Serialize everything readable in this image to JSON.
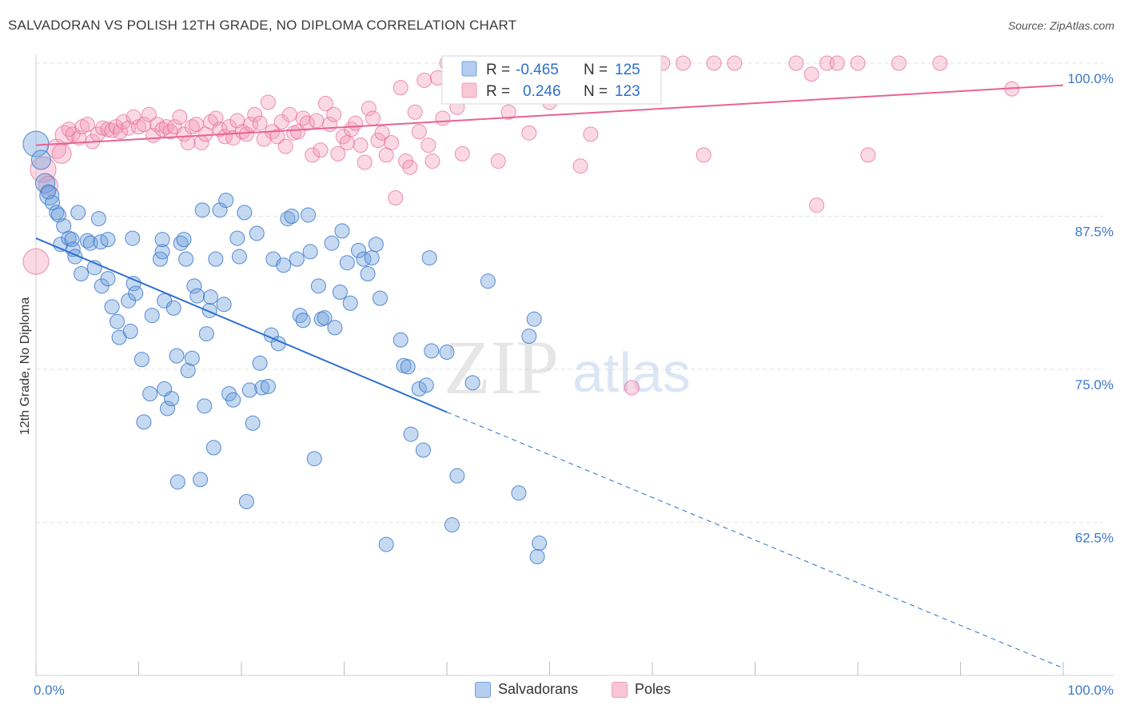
{
  "header": {
    "title": "SALVADORAN VS POLISH 12TH GRADE, NO DIPLOMA CORRELATION CHART",
    "source": "Source: ZipAtlas.com"
  },
  "watermark": {
    "zip": "ZIP",
    "atlas": "atlas"
  },
  "legend": {
    "items": [
      {
        "r_label": "R =",
        "r_value": "-0.465",
        "n_label": "N =",
        "n_value": "125"
      },
      {
        "r_label": "R =",
        "r_value": "0.246",
        "n_label": "N =",
        "n_value": "123"
      }
    ]
  },
  "bottom_legend": {
    "items": [
      {
        "label": "Salvadorans"
      },
      {
        "label": "Poles"
      }
    ]
  },
  "chart_data": {
    "type": "scatter",
    "title": "SALVADORAN VS POLISH 12TH GRADE, NO DIPLOMA CORRELATION CHART",
    "xlabel": "",
    "ylabel": "12th Grade, No Diploma",
    "xlim": [
      0,
      100
    ],
    "ylim": [
      50,
      100
    ],
    "x_tick_labels": [
      "0.0%",
      "100.0%"
    ],
    "y_tick_labels": [
      "100.0%",
      "87.5%",
      "75.0%",
      "62.5%"
    ],
    "y_ticks": [
      100,
      87.5,
      75,
      62.5
    ],
    "grid": true,
    "legend_position": "top-center",
    "colors": {
      "salvadorans": "#6fa0dd",
      "poles": "#f19bb7",
      "salvadorans_line": "#2b6fcf",
      "poles_line": "#e8638f",
      "tick_text": "#3d78c8"
    },
    "series": [
      {
        "name": "Salvadorans",
        "R": -0.465,
        "N": 125,
        "trend": {
          "x0": 0,
          "y0": 85.7,
          "x1": 40,
          "y1": 71.5,
          "dash_to_x": 100,
          "dash_to_y": 50.6
        },
        "points": [
          [
            0,
            93.4
          ],
          [
            0.5,
            92.1
          ],
          [
            0.9,
            90.2
          ],
          [
            1.3,
            89.2
          ],
          [
            1.6,
            88.6
          ],
          [
            2,
            87.8
          ],
          [
            1.2,
            89.5
          ],
          [
            2.2,
            87.6
          ],
          [
            2.4,
            85.2
          ],
          [
            2.7,
            86.7
          ],
          [
            3.2,
            85.7
          ],
          [
            3.5,
            85.6
          ],
          [
            3.6,
            84.8
          ],
          [
            3.8,
            84.2
          ],
          [
            4.1,
            87.8
          ],
          [
            4.4,
            82.8
          ],
          [
            5.0,
            85.5
          ],
          [
            5.3,
            85.3
          ],
          [
            5.7,
            83.3
          ],
          [
            6.1,
            87.3
          ],
          [
            6.3,
            85.4
          ],
          [
            6.4,
            81.8
          ],
          [
            7.0,
            85.6
          ],
          [
            7.0,
            82.4
          ],
          [
            7.4,
            80.1
          ],
          [
            7.9,
            78.9
          ],
          [
            8.1,
            77.6
          ],
          [
            9.0,
            80.6
          ],
          [
            9.2,
            78.1
          ],
          [
            9.4,
            85.7
          ],
          [
            9.5,
            82.0
          ],
          [
            9.7,
            81.2
          ],
          [
            10.3,
            75.8
          ],
          [
            10.5,
            70.7
          ],
          [
            11.1,
            73.0
          ],
          [
            11.3,
            79.4
          ],
          [
            12.1,
            84.0
          ],
          [
            12.3,
            84.6
          ],
          [
            12.3,
            85.6
          ],
          [
            12.5,
            80.6
          ],
          [
            12.5,
            73.4
          ],
          [
            12.8,
            71.8
          ],
          [
            13.2,
            72.6
          ],
          [
            13.4,
            80.0
          ],
          [
            13.7,
            76.1
          ],
          [
            13.8,
            65.8
          ],
          [
            14.1,
            85.3
          ],
          [
            14.4,
            85.6
          ],
          [
            14.6,
            84.0
          ],
          [
            14.8,
            74.9
          ],
          [
            15.2,
            75.9
          ],
          [
            15.4,
            81.8
          ],
          [
            15.7,
            81.0
          ],
          [
            16.0,
            66.0
          ],
          [
            16.2,
            88.0
          ],
          [
            16.4,
            72.0
          ],
          [
            16.6,
            77.9
          ],
          [
            16.9,
            79.8
          ],
          [
            17.0,
            80.9
          ],
          [
            17.3,
            68.6
          ],
          [
            17.5,
            84.0
          ],
          [
            17.9,
            88.0
          ],
          [
            18.3,
            80.3
          ],
          [
            18.5,
            88.8
          ],
          [
            18.8,
            73.0
          ],
          [
            19.2,
            72.5
          ],
          [
            19.6,
            85.7
          ],
          [
            19.8,
            84.2
          ],
          [
            20.3,
            87.8
          ],
          [
            20.5,
            64.2
          ],
          [
            20.8,
            73.3
          ],
          [
            21.1,
            70.6
          ],
          [
            21.5,
            86.1
          ],
          [
            21.8,
            75.5
          ],
          [
            22.0,
            73.5
          ],
          [
            22.6,
            73.6
          ],
          [
            22.9,
            77.8
          ],
          [
            23.1,
            84.0
          ],
          [
            23.6,
            77.1
          ],
          [
            24.1,
            83.5
          ],
          [
            24.5,
            87.3
          ],
          [
            24.9,
            87.5
          ],
          [
            25.4,
            84.0
          ],
          [
            25.7,
            79.4
          ],
          [
            26.0,
            79.0
          ],
          [
            26.5,
            87.6
          ],
          [
            26.7,
            84.6
          ],
          [
            27.1,
            67.7
          ],
          [
            27.5,
            81.8
          ],
          [
            27.8,
            79.1
          ],
          [
            28.1,
            79.2
          ],
          [
            28.8,
            85.3
          ],
          [
            29.1,
            78.4
          ],
          [
            29.6,
            81.3
          ],
          [
            29.8,
            86.3
          ],
          [
            30.3,
            83.7
          ],
          [
            30.6,
            80.4
          ],
          [
            31.4,
            84.7
          ],
          [
            31.9,
            84.0
          ],
          [
            32.3,
            82.8
          ],
          [
            32.7,
            84.1
          ],
          [
            33.1,
            85.2
          ],
          [
            33.5,
            80.8
          ],
          [
            34.1,
            60.7
          ],
          [
            35.5,
            77.4
          ],
          [
            35.8,
            75.3
          ],
          [
            36.2,
            75.2
          ],
          [
            36.5,
            69.7
          ],
          [
            37.3,
            73.4
          ],
          [
            37.7,
            68.4
          ],
          [
            38.0,
            73.7
          ],
          [
            38.3,
            84.1
          ],
          [
            38.5,
            76.5
          ],
          [
            40.0,
            76.4
          ],
          [
            40.5,
            62.3
          ],
          [
            41.0,
            66.3
          ],
          [
            41.3,
            100.0
          ],
          [
            42.5,
            73.9
          ],
          [
            44.0,
            82.2
          ],
          [
            47.0,
            64.9
          ],
          [
            48.0,
            77.7
          ],
          [
            48.5,
            79.1
          ],
          [
            48.8,
            59.7
          ],
          [
            49.0,
            60.8
          ]
        ]
      },
      {
        "name": "Poles",
        "R": 0.246,
        "N": 123,
        "trend": {
          "x0": 0,
          "y0": 93.3,
          "x1": 100,
          "y1": 98.2
        },
        "points": [
          [
            0,
            83.8
          ],
          [
            0.7,
            91.3
          ],
          [
            1.2,
            90.0
          ],
          [
            2.0,
            93.0
          ],
          [
            2.5,
            92.6
          ],
          [
            2.8,
            94.1
          ],
          [
            3.2,
            94.6
          ],
          [
            3.6,
            94.2
          ],
          [
            4.2,
            93.9
          ],
          [
            4.5,
            94.8
          ],
          [
            5.0,
            95.0
          ],
          [
            5.5,
            93.6
          ],
          [
            6.0,
            94.2
          ],
          [
            6.5,
            94.7
          ],
          [
            7.0,
            94.6
          ],
          [
            7.4,
            94.5
          ],
          [
            7.8,
            94.8
          ],
          [
            8.2,
            94.4
          ],
          [
            8.5,
            95.2
          ],
          [
            9.0,
            94.7
          ],
          [
            9.5,
            95.6
          ],
          [
            10.0,
            94.8
          ],
          [
            10.5,
            95.0
          ],
          [
            11.0,
            95.8
          ],
          [
            11.4,
            94.1
          ],
          [
            11.8,
            95.0
          ],
          [
            12.3,
            94.6
          ],
          [
            12.7,
            94.8
          ],
          [
            13.1,
            94.4
          ],
          [
            13.5,
            94.8
          ],
          [
            14.0,
            95.6
          ],
          [
            14.4,
            94.2
          ],
          [
            14.8,
            93.5
          ],
          [
            15.2,
            94.8
          ],
          [
            15.6,
            95.0
          ],
          [
            16.1,
            93.5
          ],
          [
            16.5,
            94.2
          ],
          [
            17.0,
            95.2
          ],
          [
            17.5,
            95.5
          ],
          [
            17.9,
            94.6
          ],
          [
            18.4,
            94.0
          ],
          [
            18.8,
            94.8
          ],
          [
            19.2,
            93.9
          ],
          [
            19.6,
            95.3
          ],
          [
            20.1,
            94.4
          ],
          [
            20.5,
            94.2
          ],
          [
            20.9,
            95.0
          ],
          [
            21.3,
            95.8
          ],
          [
            21.8,
            95.1
          ],
          [
            22.2,
            93.8
          ],
          [
            22.6,
            96.8
          ],
          [
            23.0,
            94.4
          ],
          [
            23.5,
            94.0
          ],
          [
            23.9,
            95.2
          ],
          [
            24.3,
            93.2
          ],
          [
            24.7,
            95.8
          ],
          [
            25.1,
            94.3
          ],
          [
            25.5,
            94.4
          ],
          [
            26.0,
            95.5
          ],
          [
            26.4,
            95.1
          ],
          [
            26.9,
            92.5
          ],
          [
            27.3,
            95.3
          ],
          [
            27.7,
            92.9
          ],
          [
            28.2,
            96.7
          ],
          [
            28.6,
            95.0
          ],
          [
            29.0,
            95.8
          ],
          [
            29.4,
            92.6
          ],
          [
            29.9,
            94.0
          ],
          [
            30.3,
            93.5
          ],
          [
            30.7,
            94.6
          ],
          [
            31.1,
            95.1
          ],
          [
            31.6,
            93.3
          ],
          [
            32.0,
            91.9
          ],
          [
            32.4,
            96.3
          ],
          [
            32.8,
            95.5
          ],
          [
            33.3,
            93.7
          ],
          [
            33.7,
            94.3
          ],
          [
            34.1,
            92.5
          ],
          [
            34.6,
            93.5
          ],
          [
            35.0,
            89.0
          ],
          [
            35.5,
            98.0
          ],
          [
            36.0,
            92.0
          ],
          [
            36.4,
            91.5
          ],
          [
            36.9,
            96.0
          ],
          [
            37.3,
            94.4
          ],
          [
            37.8,
            98.6
          ],
          [
            38.2,
            93.3
          ],
          [
            38.6,
            92.0
          ],
          [
            39.1,
            98.8
          ],
          [
            39.6,
            95.5
          ],
          [
            40.0,
            100.0
          ],
          [
            40.5,
            100.0
          ],
          [
            41.0,
            96.4
          ],
          [
            41.5,
            92.6
          ],
          [
            42.0,
            100.0
          ],
          [
            43.0,
            98.5
          ],
          [
            44.0,
            100.0
          ],
          [
            45.0,
            92.0
          ],
          [
            46.0,
            96.0
          ],
          [
            47.0,
            100.0
          ],
          [
            48.0,
            94.3
          ],
          [
            49.0,
            100.0
          ],
          [
            50.0,
            96.8
          ],
          [
            51.0,
            100.0
          ],
          [
            52.0,
            100.0
          ],
          [
            53.0,
            91.6
          ],
          [
            54.0,
            94.2
          ],
          [
            55.0,
            100.0
          ],
          [
            57.0,
            100.0
          ],
          [
            58.0,
            73.5
          ],
          [
            59.0,
            100.0
          ],
          [
            60.0,
            100.0
          ],
          [
            61.0,
            100.0
          ],
          [
            63.0,
            100.0
          ],
          [
            65.0,
            92.5
          ],
          [
            66.0,
            100.0
          ],
          [
            68.0,
            100.0
          ],
          [
            74.0,
            100.0
          ],
          [
            75.5,
            99.1
          ],
          [
            76.0,
            88.4
          ],
          [
            77.0,
            100.0
          ],
          [
            78.0,
            100.0
          ],
          [
            80.0,
            100.0
          ],
          [
            81.0,
            92.5
          ],
          [
            84.0,
            100.0
          ],
          [
            88.0,
            100.0
          ],
          [
            95.0,
            97.9
          ]
        ]
      }
    ]
  }
}
